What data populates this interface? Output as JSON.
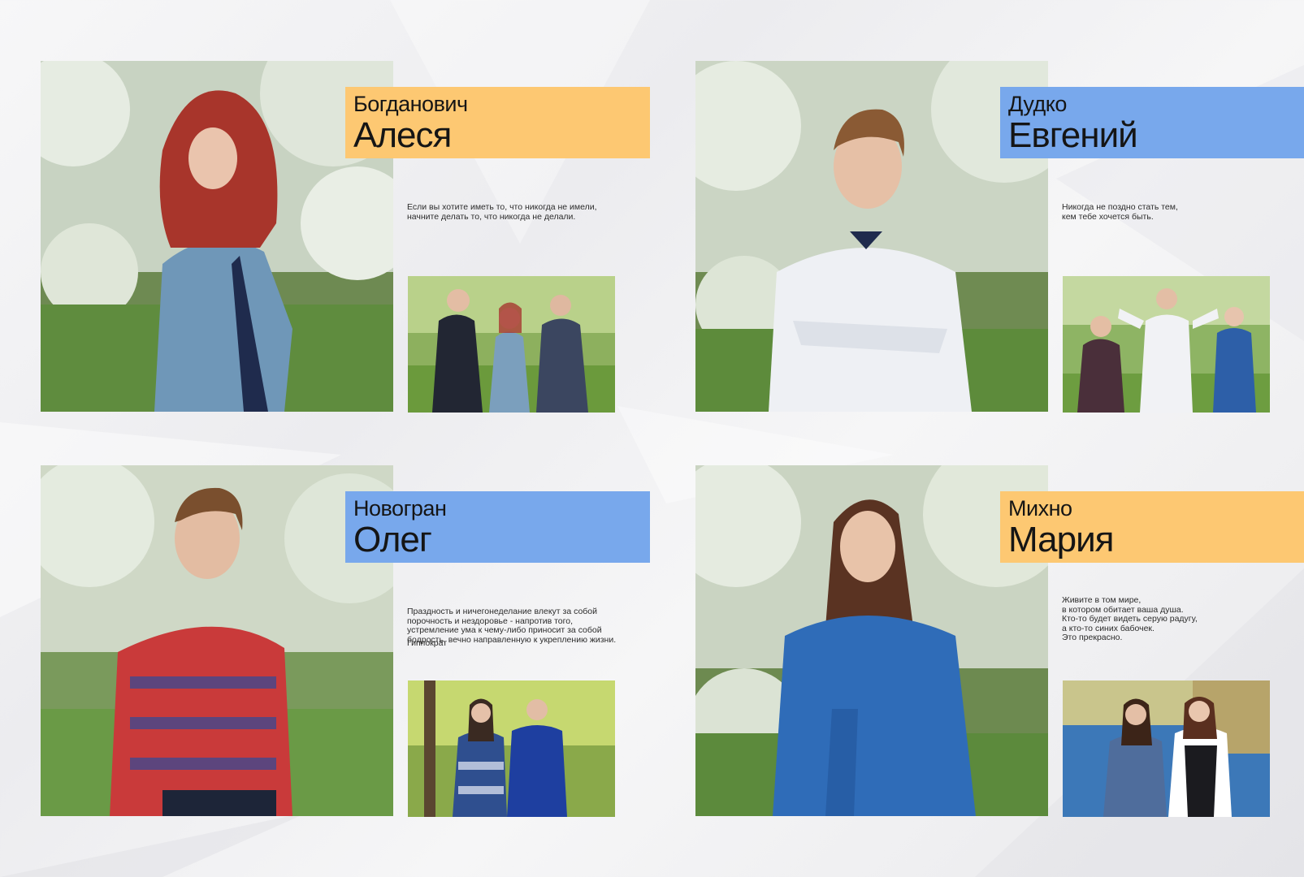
{
  "colors": {
    "orange": "#fdc872",
    "blue": "#78a8ec"
  },
  "students": [
    {
      "surname": "Богданович",
      "firstname": "Алеся",
      "banner_color": "orange",
      "quote": "Если вы хотите иметь то, что никогда не имели,\nначните делать то, что никогда не делали.",
      "author": ""
    },
    {
      "surname": "Дудко",
      "firstname": "Евгений",
      "banner_color": "blue",
      "quote": "Никогда не поздно стать тем,\nкем тебе хочется быть.",
      "author": ""
    },
    {
      "surname": "Новогран",
      "firstname": "Олег",
      "banner_color": "blue",
      "quote": "Праздность и ничегонеделание влекут за собой\nпорочность и нездоровье - напротив того,\nустремление ума к чему-либо приносит за собой\nбодрость, вечно направленную к укреплению жизни.",
      "author": "Гиппократ"
    },
    {
      "surname": "Михно",
      "firstname": "Мария",
      "banner_color": "orange",
      "quote": "Живите в том мире,\nв котором обитает ваша душа.\nКто-то будет видеть серую радугу,\nа кто-то синих бабочек.\nЭто прекрасно.",
      "author": ""
    }
  ]
}
